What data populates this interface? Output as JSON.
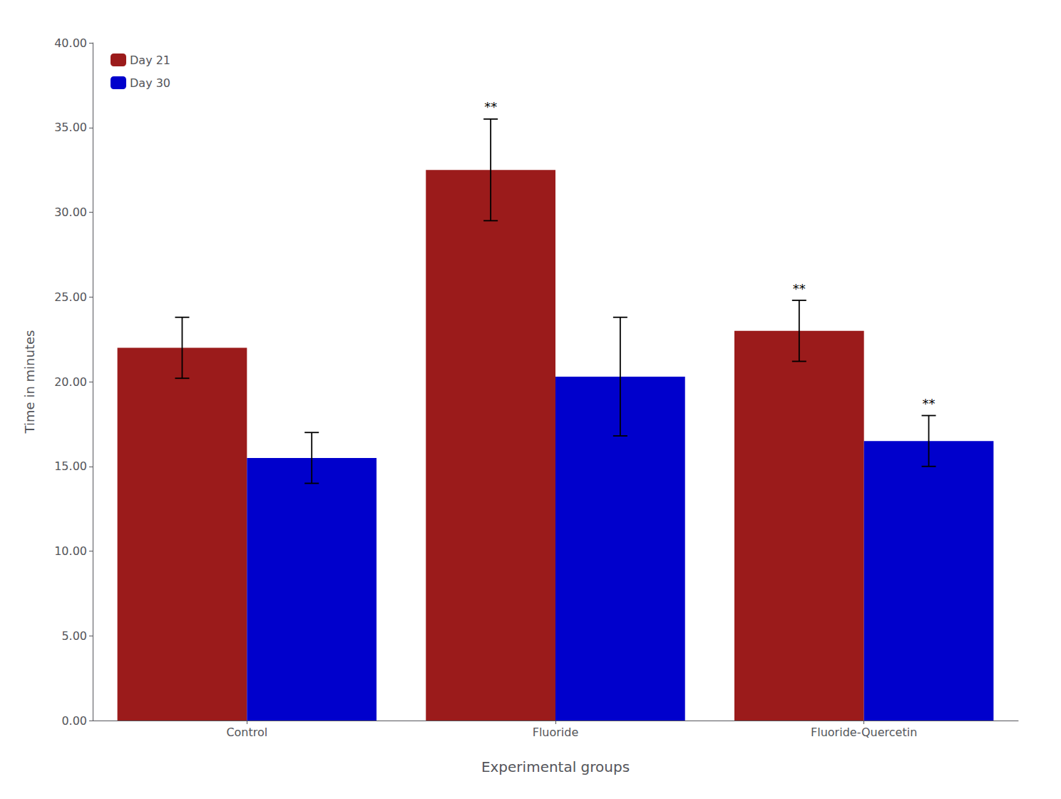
{
  "chart_data": {
    "type": "bar",
    "categories": [
      "Control",
      "Fluoride",
      "Fluoride-Quercetin"
    ],
    "series": [
      {
        "name": "Day 21",
        "color": "#9B1B1B",
        "values": [
          22.0,
          32.5,
          23.0
        ],
        "errors": [
          1.8,
          3.0,
          1.8
        ],
        "annotations": [
          null,
          "**",
          "**"
        ]
      },
      {
        "name": "Day 30",
        "color": "#0000CC",
        "values": [
          15.5,
          20.3,
          16.5
        ],
        "errors": [
          1.5,
          3.5,
          1.5
        ],
        "annotations": [
          null,
          null,
          "**"
        ]
      }
    ],
    "xlabel": "Experimental groups",
    "ylabel": "Time in minutes",
    "ylim": [
      0,
      40
    ],
    "yticks": [
      {
        "value": 0,
        "label": "0.00"
      },
      {
        "value": 5,
        "label": "5.00"
      },
      {
        "value": 10,
        "label": "10.00"
      },
      {
        "value": 15,
        "label": "15.00"
      },
      {
        "value": 20,
        "label": "20.00"
      },
      {
        "value": 25,
        "label": "25.00"
      },
      {
        "value": 30,
        "label": "30.00"
      },
      {
        "value": 35,
        "label": "35.00"
      },
      {
        "value": 40,
        "label": "40.00"
      }
    ],
    "legend": "upper left",
    "grid": false
  }
}
